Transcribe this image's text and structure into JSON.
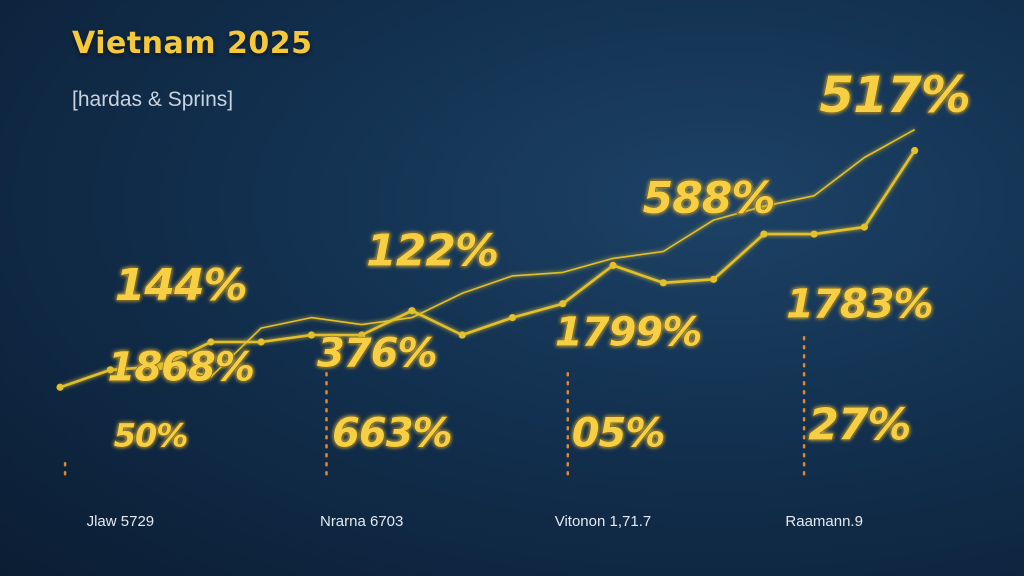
{
  "header": {
    "title": "Vietnam 2025",
    "subtitle": "[hardas & Sprins]"
  },
  "colors": {
    "line": "#e3c02c",
    "label": "#f7cf45",
    "dots": "#e08a2a"
  },
  "chart_data": {
    "type": "line",
    "title": "Vietnam 2025",
    "subtitle": "[hardas & Sprins]",
    "x": [
      0,
      1,
      2,
      3,
      4,
      5,
      6,
      7,
      8,
      9,
      10,
      11,
      12,
      13,
      14,
      15,
      16,
      17
    ],
    "series": [
      {
        "values": [
          null,
          null,
          1.8,
          1.4,
          2.8,
          3.1,
          2.9,
          3.1,
          3.8,
          4.3,
          4.4,
          4.8,
          5.0,
          5.9,
          6.3,
          6.6,
          7.7,
          8.5
        ]
      },
      {
        "values": [
          1.1,
          1.6,
          1.7,
          2.4,
          2.4,
          2.6,
          2.6,
          3.3,
          2.6,
          3.1,
          3.5,
          4.6,
          4.1,
          4.2,
          5.5,
          5.5,
          5.7,
          7.9
        ]
      }
    ],
    "categories": [
      {
        "label": "Jlaw 5729",
        "x": 1.2
      },
      {
        "label": "Nrarna 6703",
        "x": 6.0
      },
      {
        "label": "Vitonon 1,71.7",
        "x": 10.8
      },
      {
        "label": "Raamann.9",
        "x": 15.2
      }
    ],
    "point_labels": [
      {
        "text": "517%",
        "x": 16.6,
        "y": 9.0,
        "size": "xl"
      },
      {
        "text": "588%",
        "x": 12.9,
        "y": 6.1,
        "size": "l"
      },
      {
        "text": "122%",
        "x": 7.4,
        "y": 4.6,
        "size": "l"
      },
      {
        "text": "144%",
        "x": 2.4,
        "y": 3.6,
        "size": "l"
      },
      {
        "text": "1868%",
        "x": 2.4,
        "y": 1.3,
        "size": "m"
      },
      {
        "text": "376%",
        "x": 6.3,
        "y": 1.7,
        "size": "m"
      },
      {
        "text": "1799%",
        "x": 11.3,
        "y": 2.3,
        "size": "m"
      },
      {
        "text": "1783%",
        "x": 15.9,
        "y": 3.1,
        "size": "m"
      },
      {
        "text": "50%",
        "x": 1.8,
        "y": -0.6,
        "size": "s"
      },
      {
        "text": "663%",
        "x": 6.6,
        "y": -0.6,
        "size": "m"
      },
      {
        "text": "05%",
        "x": 11.1,
        "y": -0.6,
        "size": "m"
      },
      {
        "text": "27%",
        "x": 15.9,
        "y": -0.4,
        "size": "l"
      }
    ],
    "dotted_guides": [
      {
        "x": 0.1,
        "y_from": -1.4,
        "y_to": -0.9
      },
      {
        "x": 5.3,
        "y_from": -1.4,
        "y_to": 1.6
      },
      {
        "x": 10.1,
        "y_from": -1.4,
        "y_to": 1.7
      },
      {
        "x": 14.8,
        "y_from": -1.4,
        "y_to": 2.7
      }
    ],
    "xlim": [
      -0.2,
      18.2
    ],
    "ylim": [
      -3.0,
      10.5
    ],
    "grid": false,
    "legend": "none"
  }
}
